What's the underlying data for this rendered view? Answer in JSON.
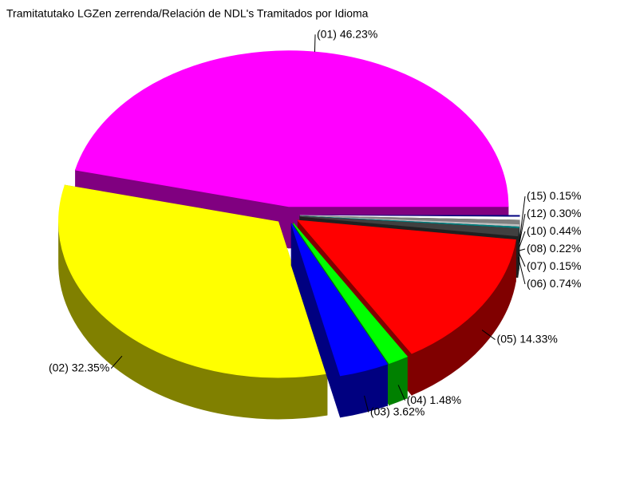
{
  "chart_data": {
    "type": "pie",
    "title": "Tramitatutako LGZen zerrenda/Relación de NDL's Tramitados por Idioma",
    "categories": [
      "(01)",
      "(02)",
      "(03)",
      "(04)",
      "(05)",
      "(06)",
      "(07)",
      "(08)",
      "(10)",
      "(12)",
      "(15)"
    ],
    "values": [
      46.23,
      32.35,
      3.62,
      1.48,
      14.33,
      0.74,
      0.15,
      0.22,
      0.44,
      0.3,
      0.15
    ],
    "value_labels": [
      "46.23%",
      "32.35%",
      "3.62%",
      "1.48%",
      "14.33%",
      "0.74%",
      "0.15%",
      "0.22%",
      "0.44%",
      "0.30%",
      "0.15%"
    ],
    "colors": [
      "#ff00ff",
      "#ffff00",
      "#0000ff",
      "#00ff00",
      "#ff0000",
      "#404040",
      "#008080",
      "#c0c0c0",
      "#808080",
      "#ffffff",
      "#000080"
    ]
  }
}
